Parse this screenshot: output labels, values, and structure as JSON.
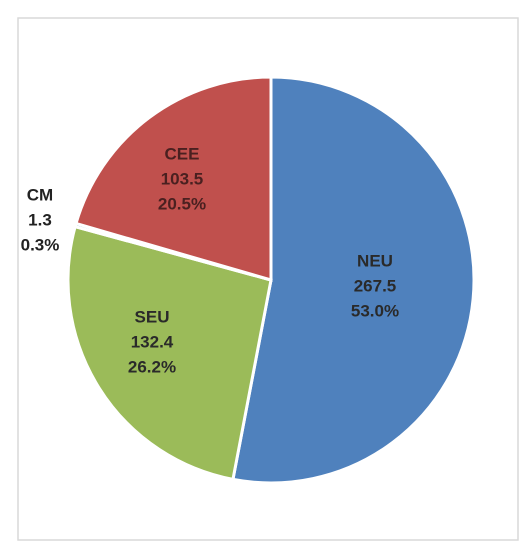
{
  "chart_data": {
    "type": "pie",
    "categories": [
      "NEU",
      "SEU",
      "CM",
      "CEE"
    ],
    "values": [
      267.5,
      132.4,
      1.3,
      103.5
    ],
    "percent_labels": [
      "53.0%",
      "26.2%",
      "0.3%",
      "20.5%"
    ],
    "colors": [
      "#4f81bd",
      "#9bbb59",
      "#4bacc6",
      "#c0504d"
    ]
  }
}
